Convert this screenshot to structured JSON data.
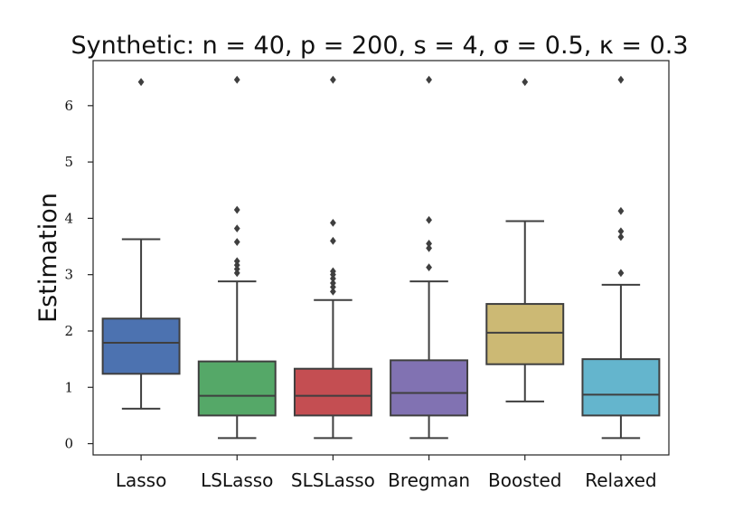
{
  "chart_data": {
    "type": "box",
    "title": "Synthetic: n = 40, p = 200, s = 4, σ = 0.5, κ = 0.3",
    "xlabel": "",
    "ylabel": "Estimation",
    "ylim": [
      -0.2,
      6.8
    ],
    "yticks": [
      0,
      1,
      2,
      3,
      4,
      5,
      6
    ],
    "ytick_labels": [
      "0",
      "1",
      "2",
      "3",
      "4",
      "5",
      "6"
    ],
    "categories": [
      "Lasso",
      "LSLasso",
      "SLSLasso",
      "Bregman",
      "Boosted",
      "Relaxed"
    ],
    "colors": [
      "#4c72b0",
      "#55a868",
      "#c44e52",
      "#8172b2",
      "#ccb974",
      "#64b5cd"
    ],
    "series": [
      {
        "name": "Lasso",
        "whisker_low": 0.62,
        "q1": 1.24,
        "median": 1.79,
        "q3": 2.22,
        "whisker_high": 3.63,
        "outliers": [
          6.42
        ]
      },
      {
        "name": "LSLasso",
        "whisker_low": 0.1,
        "q1": 0.5,
        "median": 0.85,
        "q3": 1.46,
        "whisker_high": 2.88,
        "outliers": [
          3.03,
          3.1,
          3.17,
          3.24,
          3.58,
          3.82,
          4.15,
          6.46
        ]
      },
      {
        "name": "SLSLasso",
        "whisker_low": 0.1,
        "q1": 0.5,
        "median": 0.85,
        "q3": 1.33,
        "whisker_high": 2.55,
        "outliers": [
          2.7,
          2.78,
          2.85,
          2.93,
          3.0,
          3.06,
          3.6,
          3.92,
          6.46
        ]
      },
      {
        "name": "Bregman",
        "whisker_low": 0.1,
        "q1": 0.5,
        "median": 0.9,
        "q3": 1.48,
        "whisker_high": 2.88,
        "outliers": [
          3.13,
          3.47,
          3.55,
          3.97,
          6.46
        ]
      },
      {
        "name": "Boosted",
        "whisker_low": 0.75,
        "q1": 1.41,
        "median": 1.97,
        "q3": 2.48,
        "whisker_high": 3.95,
        "outliers": [
          6.42
        ]
      },
      {
        "name": "Relaxed",
        "whisker_low": 0.1,
        "q1": 0.5,
        "median": 0.87,
        "q3": 1.5,
        "whisker_high": 2.82,
        "outliers": [
          3.03,
          3.67,
          3.77,
          4.13,
          6.46
        ]
      }
    ],
    "grid": false,
    "legend": "none"
  }
}
